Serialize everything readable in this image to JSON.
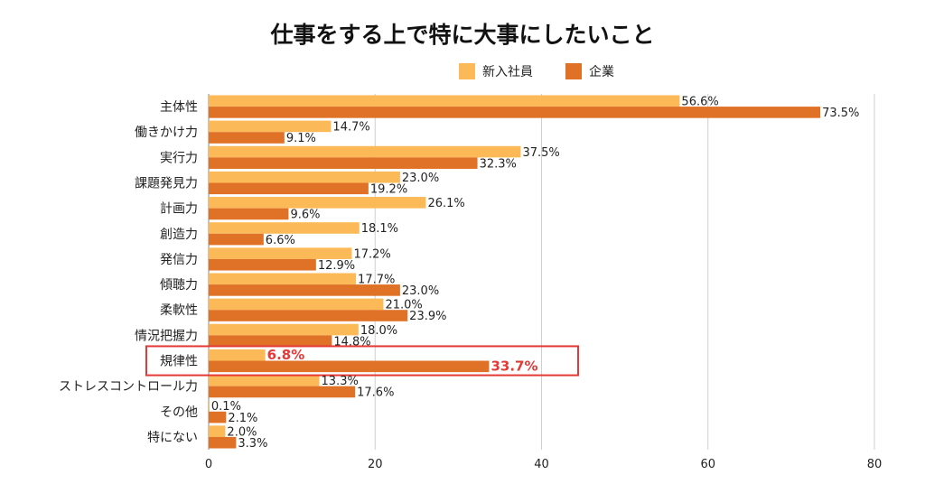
{
  "chart_data": {
    "type": "bar",
    "orientation": "horizontal",
    "title": "仕事をする上で特に大事にしたいこと",
    "categories": [
      "主体性",
      "働きかけ力",
      "実行力",
      "課題発見力",
      "計画力",
      "創造力",
      "発信力",
      "傾聴力",
      "柔軟性",
      "情況把握力",
      "規律性",
      "ストレスコントロール力",
      "その他",
      "特にない"
    ],
    "series": [
      {
        "name": "新入社員",
        "color": "#fbb957",
        "values": [
          56.6,
          14.7,
          37.5,
          23.0,
          26.1,
          18.1,
          17.2,
          17.7,
          21.0,
          18.0,
          6.8,
          13.3,
          0.1,
          2.0
        ]
      },
      {
        "name": "企業",
        "color": "#e07228",
        "values": [
          73.5,
          9.1,
          32.3,
          19.2,
          9.6,
          6.6,
          12.9,
          23.0,
          23.9,
          14.8,
          33.7,
          17.6,
          2.1,
          3.3
        ]
      }
    ],
    "value_labels": [
      [
        "56.6%",
        "73.5%"
      ],
      [
        "14.7%",
        "9.1%"
      ],
      [
        "37.5%",
        "32.3%"
      ],
      [
        "23.0%",
        "19.2%"
      ],
      [
        "26.1%",
        "9.6%"
      ],
      [
        "18.1%",
        "6.6%"
      ],
      [
        "17.2%",
        "12.9%"
      ],
      [
        "17.7%",
        "23.0%"
      ],
      [
        "21.0%",
        "23.9%"
      ],
      [
        "18.0%",
        "14.8%"
      ],
      [
        "6.8%",
        "33.7%"
      ],
      [
        "13.3%",
        "17.6%"
      ],
      [
        "0.1%",
        "2.1%"
      ],
      [
        "2.0%",
        "3.3%"
      ]
    ],
    "xlim": [
      0,
      80
    ],
    "xticks": [
      "0",
      "20",
      "40",
      "60",
      "80"
    ],
    "grid": true,
    "legend_position": "top-center",
    "highlight_category": "規律性",
    "highlight_color": "#e53935"
  }
}
